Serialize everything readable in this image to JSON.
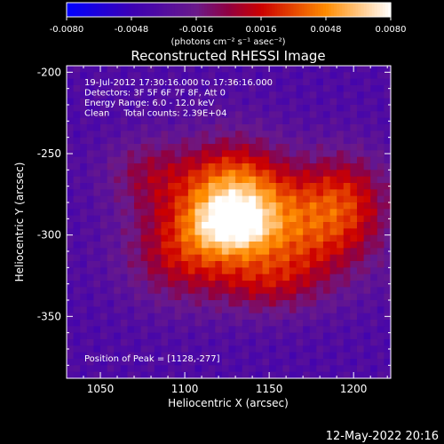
{
  "colorbar": {
    "tick_labels": [
      "-0.0080",
      "-0.0048",
      "-0.0016",
      "0.0016",
      "0.0048",
      "0.0080"
    ],
    "tick_values": [
      -0.008,
      -0.0048,
      -0.0016,
      0.0016,
      0.0048,
      0.008
    ],
    "range": [
      -0.008,
      0.008
    ],
    "units_label": "(photons cm⁻² s⁻¹ asec⁻²)"
  },
  "chart_data": {
    "type": "heatmap",
    "title": "Reconstructed RHESSI Image",
    "xlabel": "Heliocentric X (arcsec)",
    "ylabel": "Heliocentric Y (arcsec)",
    "xlim": [
      1030,
      1222
    ],
    "ylim": [
      -388,
      -196
    ],
    "x_ticks": [
      1050,
      1100,
      1150,
      1200
    ],
    "y_ticks": [
      -200,
      -250,
      -300,
      -350
    ],
    "x_tick_labels": [
      "1050",
      "1100",
      "1150",
      "1200"
    ],
    "y_tick_labels": [
      "-200",
      "-250",
      "-300",
      "-350"
    ],
    "annotations": [
      "19-Jul-2012 17:30:16.000 to 17:36:16.000",
      "Detectors: 3F 5F 6F 7F 8F, Att 0",
      "Energy Range: 6.0 - 12.0 keV",
      "Clean     Total counts: 2.39E+04"
    ],
    "peak_label": "Position of Peak = [1128,-277]",
    "peak": [
      1128,
      -277
    ],
    "sources": [
      {
        "x": 1128,
        "y": -278,
        "amp": 0.0085,
        "sx": 22,
        "sy": 24
      },
      {
        "x": 1128,
        "y": -294,
        "amp": 0.004,
        "sx": 14,
        "sy": 10
      },
      {
        "x": 1172,
        "y": -297,
        "amp": 0.0055,
        "sx": 30,
        "sy": 24
      },
      {
        "x": 1098,
        "y": -310,
        "amp": 0.0045,
        "sx": 24,
        "sy": 22
      },
      {
        "x": 1195,
        "y": -275,
        "amp": 0.0035,
        "sx": 18,
        "sy": 20
      },
      {
        "x": 1078,
        "y": -262,
        "amp": 0.003,
        "sx": 18,
        "sy": 16
      },
      {
        "x": 1150,
        "y": -330,
        "amp": 0.0028,
        "sx": 22,
        "sy": 14
      }
    ],
    "background_level": -0.0035,
    "colormap": {
      "stops": [
        {
          "v": -0.008,
          "color": "#0000ff"
        },
        {
          "v": -0.0048,
          "color": "#3c00b4"
        },
        {
          "v": -0.0016,
          "color": "#6a1a8a"
        },
        {
          "v": 0.0,
          "color": "#900040"
        },
        {
          "v": 0.0016,
          "color": "#cc0000"
        },
        {
          "v": 0.0048,
          "color": "#ff8c00"
        },
        {
          "v": 0.008,
          "color": "#ffffff"
        }
      ]
    }
  },
  "footer": {
    "timestamp": "12-May-2022 20:16"
  }
}
